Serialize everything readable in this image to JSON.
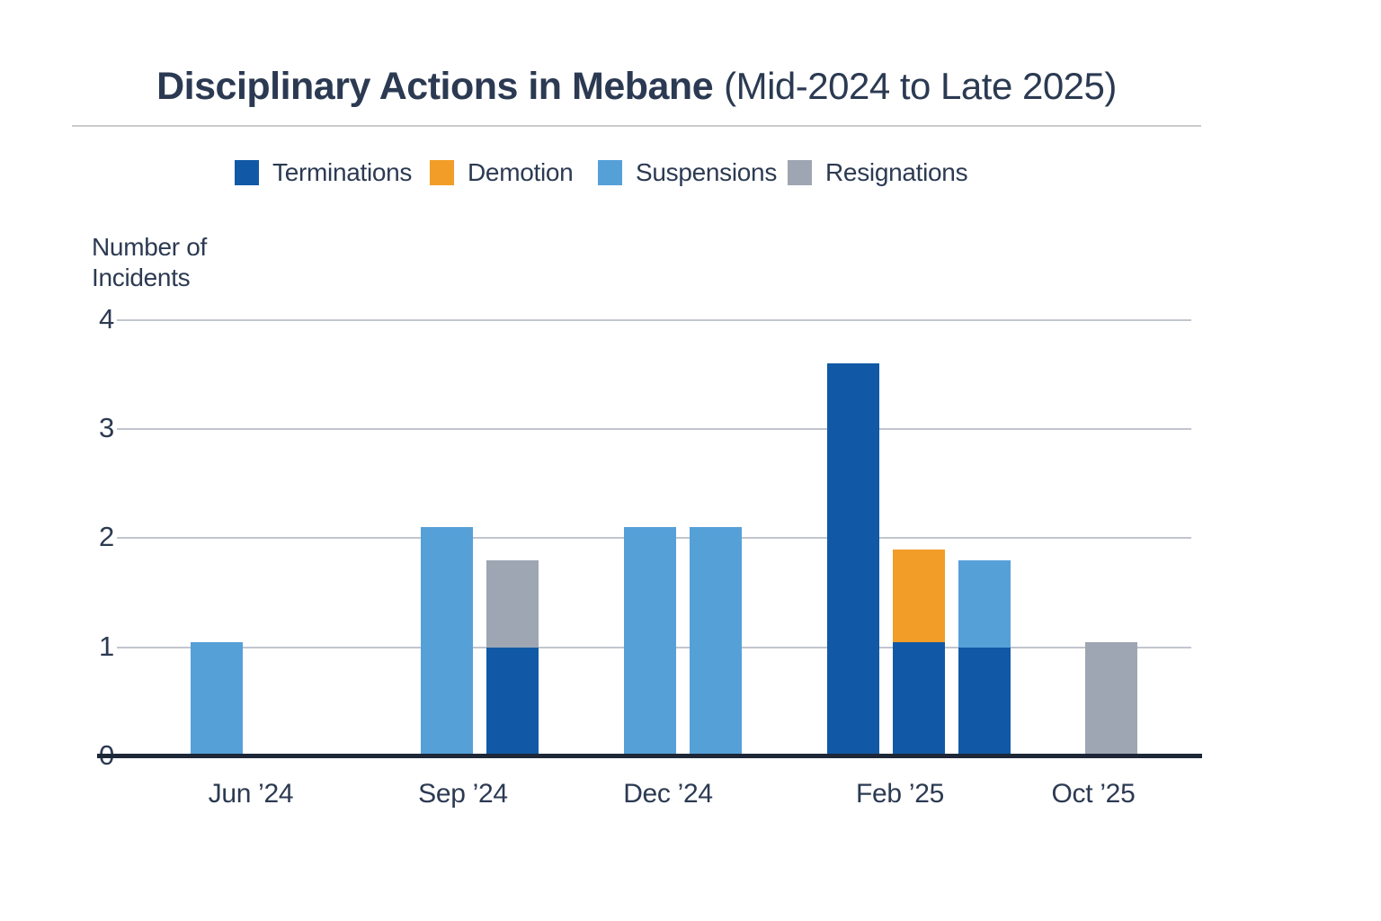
{
  "chart": {
    "title": "Disciplinary Actions in Mebane",
    "subtitle": "(Mid-2024 to Late 2025)",
    "ylabel": "Number of Incidents"
  },
  "chart_data": {
    "type": "bar",
    "stacked": true,
    "grouped": true,
    "title": "Disciplinary Actions in Mebane",
    "subtitle": "(Mid-2024 to Late 2025)",
    "xlabel": "",
    "ylabel": "Number of Incidents",
    "ylim": [
      0,
      4.3
    ],
    "yticks": [
      0,
      1,
      2,
      3,
      4
    ],
    "grid": true,
    "legend_position": "top",
    "legend": [
      {
        "name": "Terminations",
        "color": "#1159a6"
      },
      {
        "name": "Demotion",
        "color": "#f19d27"
      },
      {
        "name": "Suspensions",
        "color": "#56a0d8"
      },
      {
        "name": "Resignations",
        "color": "#9da6b2"
      }
    ],
    "categories": [
      "Jun ’24",
      "Sep ’24",
      "Dec ’24",
      "Feb ’25",
      "Oct ’25"
    ],
    "groups": [
      {
        "label": "Jun ’24",
        "bars": [
          [
            {
              "series": "Suspensions",
              "value": 1.05
            }
          ]
        ]
      },
      {
        "label": "Sep ’24",
        "bars": [
          [
            {
              "series": "Suspensions",
              "value": 2.1
            }
          ],
          [
            {
              "series": "Terminations",
              "value": 1.0
            },
            {
              "series": "Resignations",
              "value": 0.8
            }
          ]
        ]
      },
      {
        "label": "Dec ’24",
        "bars": [
          [
            {
              "series": "Suspensions",
              "value": 2.1
            }
          ],
          [
            {
              "series": "Suspensions",
              "value": 2.1
            }
          ]
        ]
      },
      {
        "label": "Feb ’25",
        "bars": [
          [
            {
              "series": "Terminations",
              "value": 3.6
            }
          ],
          [
            {
              "series": "Terminations",
              "value": 1.05
            },
            {
              "series": "Demotion",
              "value": 0.85
            }
          ],
          [
            {
              "series": "Terminations",
              "value": 1.0
            },
            {
              "series": "Suspensions",
              "value": 0.8
            }
          ]
        ]
      },
      {
        "label": "Oct ’25",
        "bars": [
          [
            {
              "series": "Resignations",
              "value": 1.05
            }
          ]
        ]
      }
    ],
    "colors": {
      "accent_dark_blue": "#1159a6",
      "accent_orange": "#f19d27",
      "accent_light_blue": "#56a0d8",
      "accent_gray": "#9da6b2",
      "text": "#2c3a52",
      "axis": "#1d2737",
      "gridline": "#c1c5ce"
    }
  }
}
